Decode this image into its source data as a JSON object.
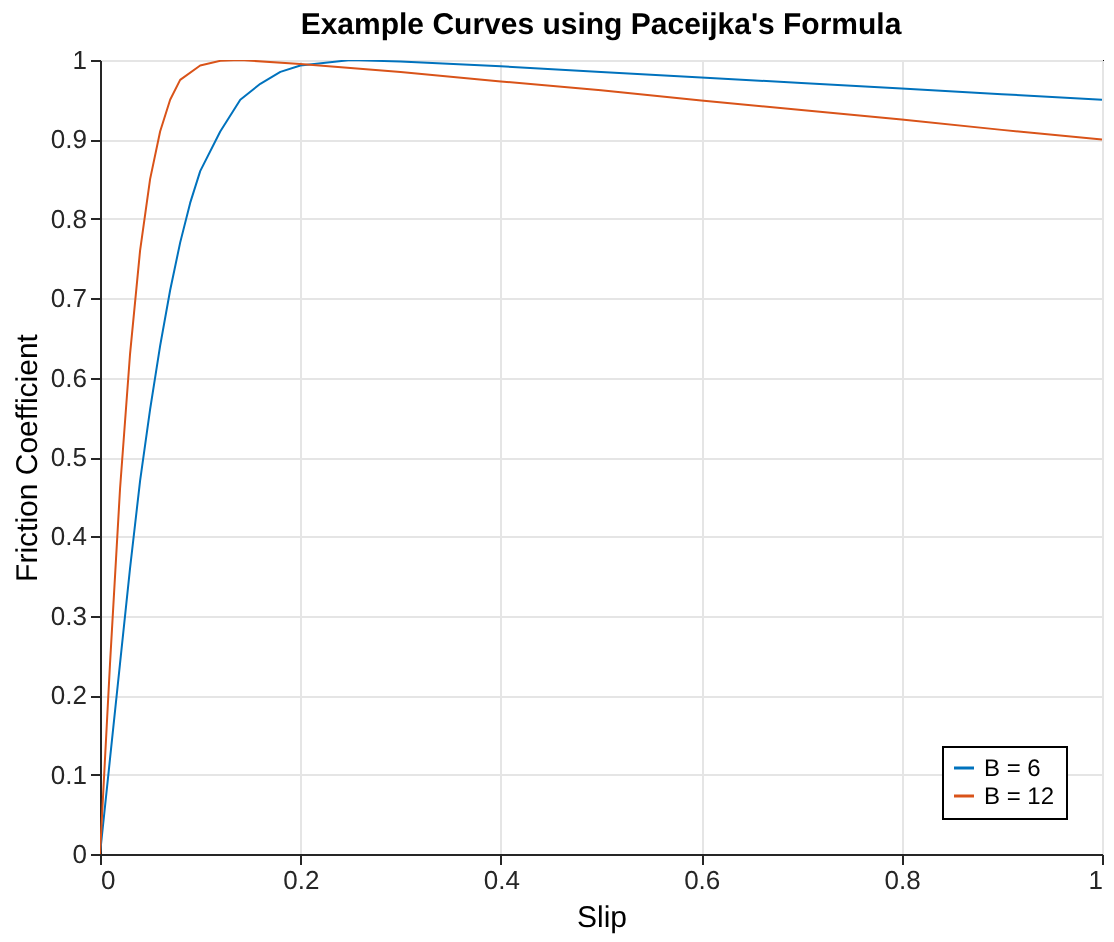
{
  "chart_data": {
    "type": "line",
    "title": "Example Curves using Paceijka's Formula",
    "xlabel": "Slip",
    "ylabel": "Friction Coefficient",
    "series": [
      {
        "name": "B = 6",
        "color": "#0072bd",
        "x": [
          0,
          0.01,
          0.02,
          0.03,
          0.04,
          0.05,
          0.06,
          0.07,
          0.08,
          0.09,
          0.1,
          0.12,
          0.14,
          0.16,
          0.18,
          0.2,
          0.25,
          0.3,
          0.4,
          0.5,
          0.6,
          0.7,
          0.8,
          0.9,
          1
        ],
        "values": [
          0,
          0.12,
          0.24,
          0.36,
          0.47,
          0.56,
          0.64,
          0.71,
          0.77,
          0.82,
          0.86,
          0.91,
          0.95,
          0.97,
          0.985,
          0.993,
          1.0,
          0.998,
          0.992,
          0.985,
          0.978,
          0.971,
          0.964,
          0.957,
          0.95
        ]
      },
      {
        "name": "B = 12",
        "color": "#d95319",
        "x": [
          0,
          0.01,
          0.02,
          0.03,
          0.04,
          0.05,
          0.06,
          0.07,
          0.08,
          0.1,
          0.12,
          0.14,
          0.2,
          0.3,
          0.4,
          0.5,
          0.6,
          0.7,
          0.8,
          0.9,
          1
        ],
        "values": [
          0,
          0.24,
          0.46,
          0.63,
          0.76,
          0.85,
          0.91,
          0.95,
          0.975,
          0.993,
          0.999,
          1.0,
          0.995,
          0.985,
          0.973,
          0.962,
          0.949,
          0.937,
          0.925,
          0.912,
          0.9
        ]
      }
    ],
    "xlim": [
      0,
      1
    ],
    "xticks": [
      0,
      0.2,
      0.4,
      0.6,
      0.8,
      1
    ],
    "ylim": [
      0,
      1
    ],
    "yticks": [
      0,
      0.1,
      0.2,
      0.3,
      0.4,
      0.5,
      0.6,
      0.7,
      0.8,
      0.9,
      1
    ],
    "grid": true,
    "legend": "bottom right",
    "marker": "none",
    "line_style": "solid"
  }
}
